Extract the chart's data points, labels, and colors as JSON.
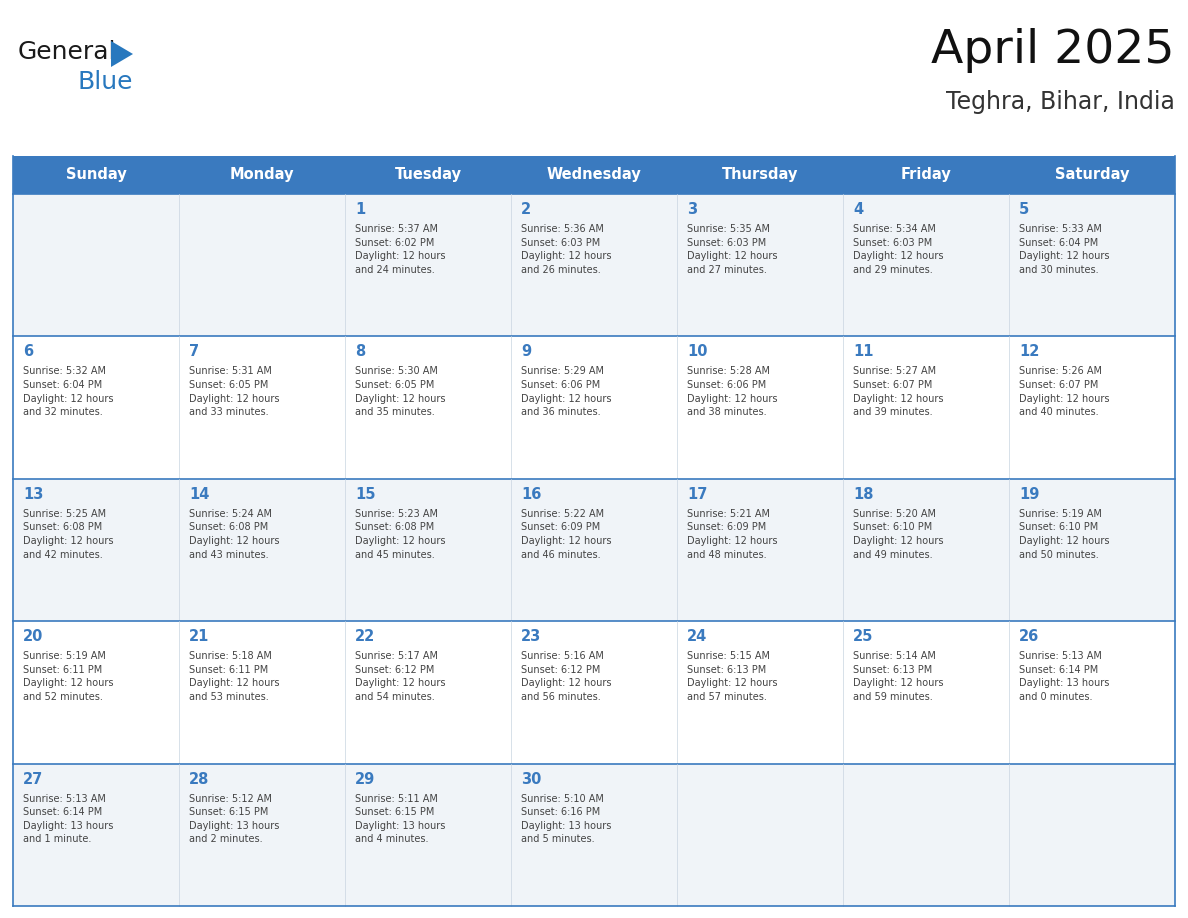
{
  "title": "April 2025",
  "subtitle": "Teghra, Bihar, India",
  "header_color": "#3a7abf",
  "header_text_color": "#ffffff",
  "row_bg_odd": "#f0f4f8",
  "row_bg_even": "#ffffff",
  "text_color": "#444444",
  "day_num_color": "#3a7abf",
  "border_color": "#3a7abf",
  "days_of_week": [
    "Sunday",
    "Monday",
    "Tuesday",
    "Wednesday",
    "Thursday",
    "Friday",
    "Saturday"
  ],
  "weeks": [
    [
      {
        "day": "",
        "info": ""
      },
      {
        "day": "",
        "info": ""
      },
      {
        "day": "1",
        "info": "Sunrise: 5:37 AM\nSunset: 6:02 PM\nDaylight: 12 hours\nand 24 minutes."
      },
      {
        "day": "2",
        "info": "Sunrise: 5:36 AM\nSunset: 6:03 PM\nDaylight: 12 hours\nand 26 minutes."
      },
      {
        "day": "3",
        "info": "Sunrise: 5:35 AM\nSunset: 6:03 PM\nDaylight: 12 hours\nand 27 minutes."
      },
      {
        "day": "4",
        "info": "Sunrise: 5:34 AM\nSunset: 6:03 PM\nDaylight: 12 hours\nand 29 minutes."
      },
      {
        "day": "5",
        "info": "Sunrise: 5:33 AM\nSunset: 6:04 PM\nDaylight: 12 hours\nand 30 minutes."
      }
    ],
    [
      {
        "day": "6",
        "info": "Sunrise: 5:32 AM\nSunset: 6:04 PM\nDaylight: 12 hours\nand 32 minutes."
      },
      {
        "day": "7",
        "info": "Sunrise: 5:31 AM\nSunset: 6:05 PM\nDaylight: 12 hours\nand 33 minutes."
      },
      {
        "day": "8",
        "info": "Sunrise: 5:30 AM\nSunset: 6:05 PM\nDaylight: 12 hours\nand 35 minutes."
      },
      {
        "day": "9",
        "info": "Sunrise: 5:29 AM\nSunset: 6:06 PM\nDaylight: 12 hours\nand 36 minutes."
      },
      {
        "day": "10",
        "info": "Sunrise: 5:28 AM\nSunset: 6:06 PM\nDaylight: 12 hours\nand 38 minutes."
      },
      {
        "day": "11",
        "info": "Sunrise: 5:27 AM\nSunset: 6:07 PM\nDaylight: 12 hours\nand 39 minutes."
      },
      {
        "day": "12",
        "info": "Sunrise: 5:26 AM\nSunset: 6:07 PM\nDaylight: 12 hours\nand 40 minutes."
      }
    ],
    [
      {
        "day": "13",
        "info": "Sunrise: 5:25 AM\nSunset: 6:08 PM\nDaylight: 12 hours\nand 42 minutes."
      },
      {
        "day": "14",
        "info": "Sunrise: 5:24 AM\nSunset: 6:08 PM\nDaylight: 12 hours\nand 43 minutes."
      },
      {
        "day": "15",
        "info": "Sunrise: 5:23 AM\nSunset: 6:08 PM\nDaylight: 12 hours\nand 45 minutes."
      },
      {
        "day": "16",
        "info": "Sunrise: 5:22 AM\nSunset: 6:09 PM\nDaylight: 12 hours\nand 46 minutes."
      },
      {
        "day": "17",
        "info": "Sunrise: 5:21 AM\nSunset: 6:09 PM\nDaylight: 12 hours\nand 48 minutes."
      },
      {
        "day": "18",
        "info": "Sunrise: 5:20 AM\nSunset: 6:10 PM\nDaylight: 12 hours\nand 49 minutes."
      },
      {
        "day": "19",
        "info": "Sunrise: 5:19 AM\nSunset: 6:10 PM\nDaylight: 12 hours\nand 50 minutes."
      }
    ],
    [
      {
        "day": "20",
        "info": "Sunrise: 5:19 AM\nSunset: 6:11 PM\nDaylight: 12 hours\nand 52 minutes."
      },
      {
        "day": "21",
        "info": "Sunrise: 5:18 AM\nSunset: 6:11 PM\nDaylight: 12 hours\nand 53 minutes."
      },
      {
        "day": "22",
        "info": "Sunrise: 5:17 AM\nSunset: 6:12 PM\nDaylight: 12 hours\nand 54 minutes."
      },
      {
        "day": "23",
        "info": "Sunrise: 5:16 AM\nSunset: 6:12 PM\nDaylight: 12 hours\nand 56 minutes."
      },
      {
        "day": "24",
        "info": "Sunrise: 5:15 AM\nSunset: 6:13 PM\nDaylight: 12 hours\nand 57 minutes."
      },
      {
        "day": "25",
        "info": "Sunrise: 5:14 AM\nSunset: 6:13 PM\nDaylight: 12 hours\nand 59 minutes."
      },
      {
        "day": "26",
        "info": "Sunrise: 5:13 AM\nSunset: 6:14 PM\nDaylight: 13 hours\nand 0 minutes."
      }
    ],
    [
      {
        "day": "27",
        "info": "Sunrise: 5:13 AM\nSunset: 6:14 PM\nDaylight: 13 hours\nand 1 minute."
      },
      {
        "day": "28",
        "info": "Sunrise: 5:12 AM\nSunset: 6:15 PM\nDaylight: 13 hours\nand 2 minutes."
      },
      {
        "day": "29",
        "info": "Sunrise: 5:11 AM\nSunset: 6:15 PM\nDaylight: 13 hours\nand 4 minutes."
      },
      {
        "day": "30",
        "info": "Sunrise: 5:10 AM\nSunset: 6:16 PM\nDaylight: 13 hours\nand 5 minutes."
      },
      {
        "day": "",
        "info": ""
      },
      {
        "day": "",
        "info": ""
      },
      {
        "day": "",
        "info": ""
      }
    ]
  ],
  "logo_general_color": "#1a1a1a",
  "logo_blue_color": "#2878be",
  "logo_triangle_color": "#2878be",
  "fig_width": 11.88,
  "fig_height": 9.18,
  "dpi": 100
}
